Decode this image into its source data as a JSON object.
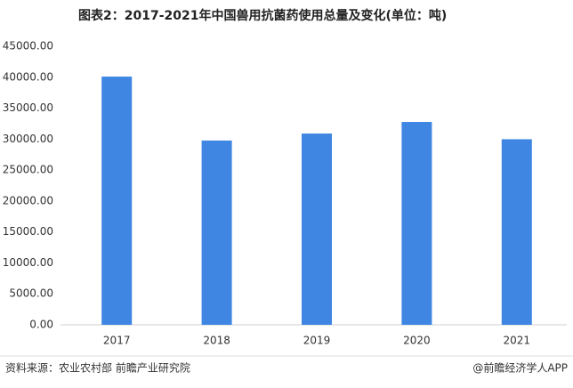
{
  "chart_data": {
    "type": "bar",
    "title": "图表2：2017-2021年中国兽用抗菌药使用总量及变化(单位：吨)",
    "categories": [
      "2017",
      "2018",
      "2019",
      "2020",
      "2021"
    ],
    "values": [
      40100,
      29774,
      30903,
      32776,
      29982
    ],
    "color": "#3f86e3",
    "ylim": [
      0,
      45000
    ],
    "yticks": [
      {
        "value": 0,
        "label": "0.00"
      },
      {
        "value": 5000,
        "label": "5000.00"
      },
      {
        "value": 10000,
        "label": "10000.00"
      },
      {
        "value": 15000,
        "label": "15000.00"
      },
      {
        "value": 20000,
        "label": "20000.00"
      },
      {
        "value": 25000,
        "label": "25000.00"
      },
      {
        "value": 30000,
        "label": "30000.00"
      },
      {
        "value": 35000,
        "label": "35000.00"
      },
      {
        "value": 40000,
        "label": "40000.00"
      },
      {
        "value": 45000,
        "label": "45000.00"
      }
    ],
    "grid": false,
    "source": "资料来源：农业农村部 前瞻产业研究院",
    "credit": "@前瞻经济学人APP"
  }
}
